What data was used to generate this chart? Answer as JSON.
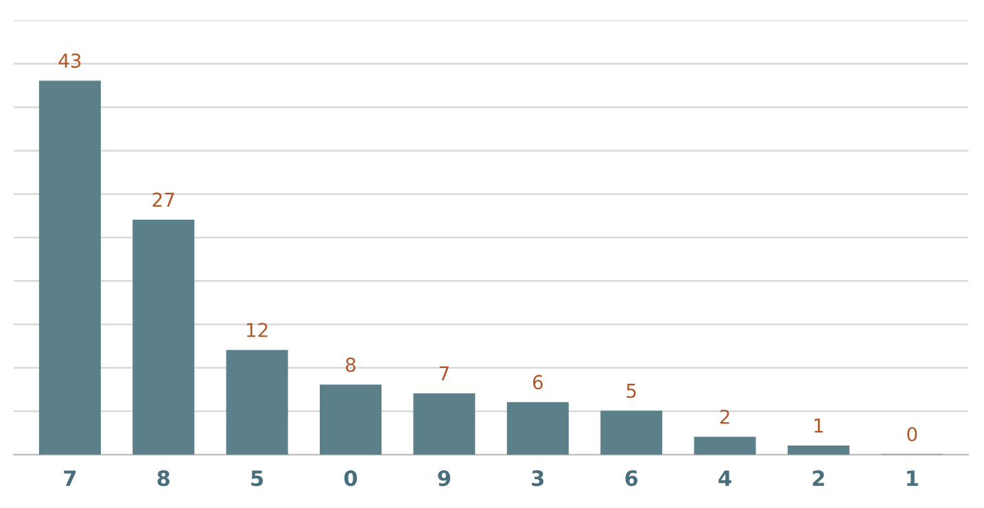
{
  "chart_data": {
    "type": "bar",
    "categories": [
      "7",
      "8",
      "5",
      "0",
      "9",
      "3",
      "6",
      "4",
      "2",
      "1"
    ],
    "values": [
      43,
      27,
      12,
      8,
      7,
      6,
      5,
      2,
      1,
      0
    ],
    "color": "#5b808a",
    "data_labels": true,
    "grid": "y",
    "tick_labels": "x",
    "ylim": [
      0,
      50
    ],
    "yticks": [
      {
        "value": 0,
        "label": null
      },
      {
        "value": 5,
        "label": null
      },
      {
        "value": 10,
        "label": null
      },
      {
        "value": 15,
        "label": null
      },
      {
        "value": 20,
        "label": null
      },
      {
        "value": 25,
        "label": null
      },
      {
        "value": 30,
        "label": null
      },
      {
        "value": 35,
        "label": null
      },
      {
        "value": 40,
        "label": null
      },
      {
        "value": 45,
        "label": null
      },
      {
        "value": 50,
        "label": null
      }
    ]
  }
}
